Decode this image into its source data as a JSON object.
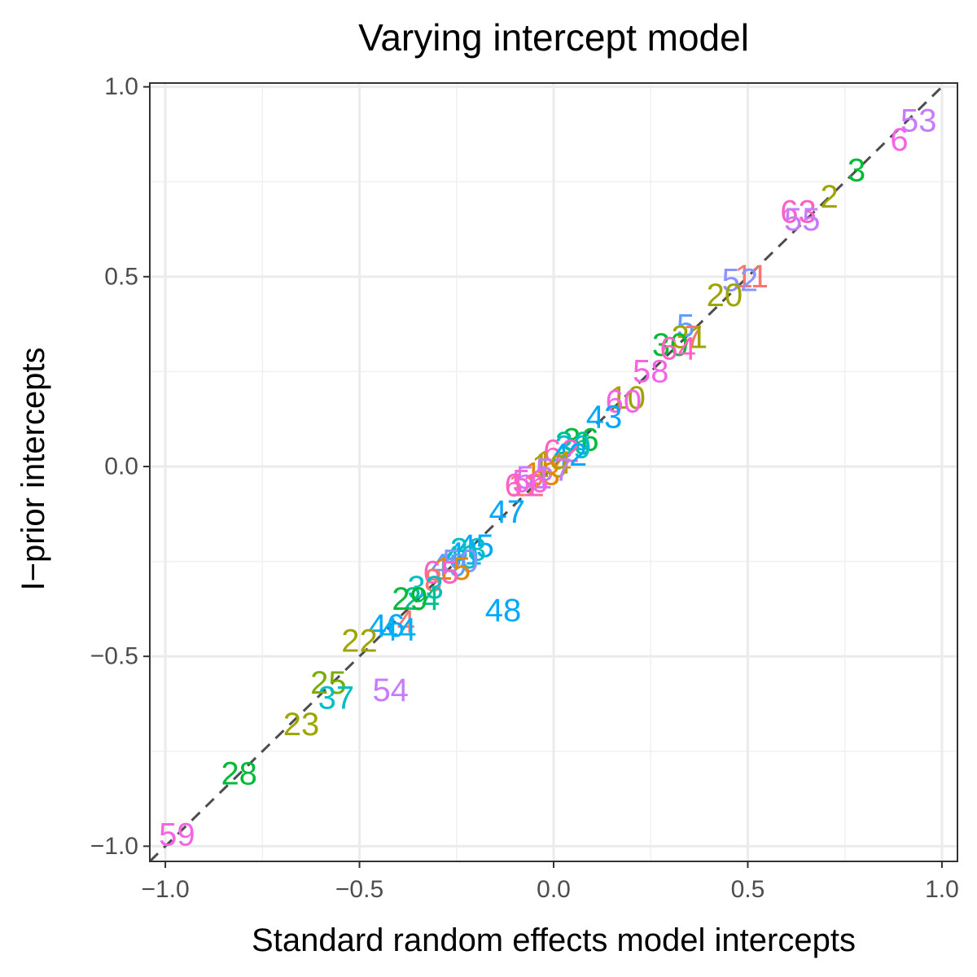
{
  "chart_data": {
    "type": "scatter",
    "title": "Varying intercept model",
    "xlabel": "Standard random effects model intercepts",
    "ylabel": "I−prior intercepts",
    "xlim": [
      -1.04,
      1.04
    ],
    "ylim": [
      -1.04,
      1.01
    ],
    "xticks": [
      -1.0,
      -0.5,
      0.0,
      0.5,
      1.0
    ],
    "xtick_labels": [
      "−1.0",
      "−0.5",
      "0.0",
      "0.5",
      "1.0"
    ],
    "yticks": [
      -1.0,
      -0.5,
      0.0,
      0.5,
      1.0
    ],
    "ytick_labels": [
      "−1.0",
      "−0.5",
      "0.0",
      "0.5",
      "1.0"
    ],
    "grid": true,
    "reference_line": {
      "type": "identity",
      "style": "dashed",
      "color": "#4d4d4d"
    },
    "points": [
      {
        "label": "53",
        "x": 0.94,
        "y": 0.91,
        "color": "#c77cff"
      },
      {
        "label": "6",
        "x": 0.89,
        "y": 0.86,
        "color": "#f564e3"
      },
      {
        "label": "3",
        "x": 0.78,
        "y": 0.78,
        "color": "#00ba38"
      },
      {
        "label": "2",
        "x": 0.71,
        "y": 0.71,
        "color": "#9fa500"
      },
      {
        "label": "63",
        "x": 0.63,
        "y": 0.67,
        "color": "#ff61c3"
      },
      {
        "label": "55",
        "x": 0.64,
        "y": 0.65,
        "color": "#c77cff"
      },
      {
        "label": "11",
        "x": 0.51,
        "y": 0.5,
        "color": "#f8766d"
      },
      {
        "label": "52",
        "x": 0.48,
        "y": 0.49,
        "color": "#8b93ff"
      },
      {
        "label": "20",
        "x": 0.44,
        "y": 0.45,
        "color": "#9fa500"
      },
      {
        "label": "5",
        "x": 0.34,
        "y": 0.37,
        "color": "#619cff"
      },
      {
        "label": "7",
        "x": 0.36,
        "y": 0.34,
        "color": "#f8766d"
      },
      {
        "label": "31",
        "x": 0.35,
        "y": 0.34,
        "color": "#9fa500"
      },
      {
        "label": "30",
        "x": 0.3,
        "y": 0.32,
        "color": "#00ba38"
      },
      {
        "label": "64",
        "x": 0.32,
        "y": 0.31,
        "color": "#ff61c3"
      },
      {
        "label": "58",
        "x": 0.25,
        "y": 0.25,
        "color": "#f564e3"
      },
      {
        "label": "10",
        "x": 0.19,
        "y": 0.18,
        "color": "#9fa500"
      },
      {
        "label": "60",
        "x": 0.18,
        "y": 0.17,
        "color": "#f564e3"
      },
      {
        "label": "43",
        "x": 0.13,
        "y": 0.13,
        "color": "#00a9ff"
      },
      {
        "label": "36",
        "x": 0.07,
        "y": 0.07,
        "color": "#00ba38"
      },
      {
        "label": "26",
        "x": 0.05,
        "y": 0.06,
        "color": "#00c08b"
      },
      {
        "label": "39",
        "x": 0.05,
        "y": 0.05,
        "color": "#00bfc4"
      },
      {
        "label": "62",
        "x": 0.02,
        "y": 0.04,
        "color": "#ff61c3"
      },
      {
        "label": "42",
        "x": 0.04,
        "y": 0.03,
        "color": "#00a9ff"
      },
      {
        "label": "14",
        "x": 0.0,
        "y": 0.01,
        "color": "#c49a00"
      },
      {
        "label": "19",
        "x": -0.01,
        "y": 0.0,
        "color": "#9fa500"
      },
      {
        "label": "57",
        "x": 0.0,
        "y": -0.01,
        "color": "#c77cff"
      },
      {
        "label": "13",
        "x": -0.03,
        "y": -0.02,
        "color": "#e58700"
      },
      {
        "label": "51",
        "x": -0.05,
        "y": -0.03,
        "color": "#c77cff"
      },
      {
        "label": "12",
        "x": -0.07,
        "y": -0.05,
        "color": "#f8766d"
      },
      {
        "label": "61",
        "x": -0.08,
        "y": -0.05,
        "color": "#ff61c3"
      },
      {
        "label": "56",
        "x": -0.06,
        "y": -0.04,
        "color": "#f564e3"
      },
      {
        "label": "47",
        "x": -0.12,
        "y": -0.12,
        "color": "#00a9ff"
      },
      {
        "label": "45",
        "x": -0.2,
        "y": -0.21,
        "color": "#00a9ff"
      },
      {
        "label": "38",
        "x": -0.22,
        "y": -0.22,
        "color": "#00bfc4"
      },
      {
        "label": "41",
        "x": -0.23,
        "y": -0.23,
        "color": "#00b0f6"
      },
      {
        "label": "40",
        "x": -0.24,
        "y": -0.24,
        "color": "#00bfc4"
      },
      {
        "label": "50",
        "x": -0.24,
        "y": -0.25,
        "color": "#8b93ff"
      },
      {
        "label": "49",
        "x": -0.27,
        "y": -0.26,
        "color": "#619cff"
      },
      {
        "label": "15",
        "x": -0.26,
        "y": -0.27,
        "color": "#e58700"
      },
      {
        "label": "65",
        "x": -0.29,
        "y": -0.28,
        "color": "#ff61c3"
      },
      {
        "label": "8",
        "x": -0.31,
        "y": -0.3,
        "color": "#f8766d"
      },
      {
        "label": "33",
        "x": -0.33,
        "y": -0.32,
        "color": "#00bfc4"
      },
      {
        "label": "24",
        "x": -0.34,
        "y": -0.35,
        "color": "#00c08b"
      },
      {
        "label": "29",
        "x": -0.37,
        "y": -0.35,
        "color": "#00ba38"
      },
      {
        "label": "48",
        "x": -0.13,
        "y": -0.38,
        "color": "#00a9ff"
      },
      {
        "label": "4",
        "x": -0.38,
        "y": -0.41,
        "color": "#f8766d"
      },
      {
        "label": "46",
        "x": -0.43,
        "y": -0.42,
        "color": "#00a9ff"
      },
      {
        "label": "44",
        "x": -0.4,
        "y": -0.43,
        "color": "#00b0f6"
      },
      {
        "label": "22",
        "x": -0.5,
        "y": -0.46,
        "color": "#9fa500"
      },
      {
        "label": "25",
        "x": -0.58,
        "y": -0.57,
        "color": "#7cae00"
      },
      {
        "label": "54",
        "x": -0.42,
        "y": -0.59,
        "color": "#c77cff"
      },
      {
        "label": "37",
        "x": -0.56,
        "y": -0.61,
        "color": "#00bfc4"
      },
      {
        "label": "23",
        "x": -0.65,
        "y": -0.68,
        "color": "#9fa500"
      },
      {
        "label": "28",
        "x": -0.81,
        "y": -0.81,
        "color": "#00ba38"
      },
      {
        "label": "59",
        "x": -0.97,
        "y": -0.97,
        "color": "#f564e3"
      }
    ]
  }
}
